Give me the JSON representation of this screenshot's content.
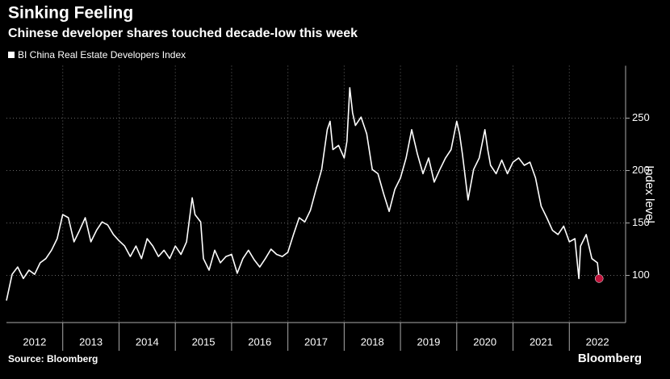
{
  "chart_data": {
    "type": "line",
    "title": "Sinking Feeling",
    "subtitle": "Chinese developer shares touched decade-low this week",
    "y_label": "Index level",
    "source": "Source: Bloomberg",
    "brand": "Bloomberg",
    "series": [
      {
        "name": "BI China Real Estate Developers Index",
        "color": "#ffffff",
        "x": [
          2012.0,
          2012.1,
          2012.2,
          2012.3,
          2012.4,
          2012.5,
          2012.6,
          2012.7,
          2012.8,
          2012.9,
          2013.0,
          2013.1,
          2013.2,
          2013.3,
          2013.4,
          2013.5,
          2013.6,
          2013.7,
          2013.8,
          2013.9,
          2014.0,
          2014.1,
          2014.2,
          2014.3,
          2014.4,
          2014.5,
          2014.6,
          2014.7,
          2014.8,
          2014.9,
          2015.0,
          2015.1,
          2015.2,
          2015.3,
          2015.35,
          2015.45,
          2015.5,
          2015.6,
          2015.7,
          2015.8,
          2015.9,
          2016.0,
          2016.1,
          2016.2,
          2016.3,
          2016.4,
          2016.5,
          2016.6,
          2016.7,
          2016.8,
          2016.9,
          2017.0,
          2017.1,
          2017.2,
          2017.3,
          2017.4,
          2017.5,
          2017.6,
          2017.7,
          2017.75,
          2017.8,
          2017.9,
          2018.0,
          2018.05,
          2018.1,
          2018.15,
          2018.2,
          2018.3,
          2018.4,
          2018.5,
          2018.6,
          2018.7,
          2018.8,
          2018.9,
          2019.0,
          2019.1,
          2019.2,
          2019.3,
          2019.4,
          2019.5,
          2019.6,
          2019.7,
          2019.8,
          2019.9,
          2020.0,
          2020.05,
          2020.1,
          2020.2,
          2020.3,
          2020.4,
          2020.5,
          2020.55,
          2020.6,
          2020.7,
          2020.8,
          2020.9,
          2021.0,
          2021.1,
          2021.2,
          2021.3,
          2021.4,
          2021.5,
          2021.6,
          2021.7,
          2021.8,
          2021.9,
          2022.0,
          2022.1,
          2022.17,
          2022.2,
          2022.3,
          2022.4,
          2022.5,
          2022.53
        ],
        "values": [
          76,
          101,
          108,
          97,
          105,
          101,
          112,
          116,
          124,
          135,
          158,
          155,
          132,
          143,
          155,
          132,
          143,
          151,
          148,
          139,
          133,
          128,
          118,
          128,
          116,
          135,
          128,
          118,
          124,
          116,
          128,
          120,
          132,
          174,
          158,
          151,
          116,
          105,
          124,
          112,
          118,
          120,
          102,
          116,
          124,
          115,
          108,
          116,
          125,
          120,
          118,
          122,
          139,
          155,
          151,
          162,
          182,
          201,
          239,
          247,
          220,
          224,
          212,
          228,
          279,
          255,
          243,
          251,
          235,
          201,
          197,
          178,
          161,
          182,
          193,
          212,
          239,
          216,
          197,
          212,
          189,
          201,
          212,
          220,
          247,
          235,
          216,
          172,
          201,
          212,
          239,
          220,
          205,
          197,
          210,
          197,
          208,
          212,
          205,
          208,
          193,
          166,
          155,
          143,
          139,
          147,
          132,
          135,
          97,
          128,
          139,
          116,
          112,
          97
        ]
      }
    ],
    "xlim": [
      2012,
      2023
    ],
    "ylim": [
      55,
      300
    ],
    "yticks": [
      100,
      150,
      200,
      250
    ],
    "xticks": [
      {
        "value": 2012.5,
        "label": "2012"
      },
      {
        "value": 2013.5,
        "label": "2013"
      },
      {
        "value": 2014.5,
        "label": "2014"
      },
      {
        "value": 2015.5,
        "label": "2015"
      },
      {
        "value": 2016.5,
        "label": "2016"
      },
      {
        "value": 2017.5,
        "label": "2017"
      },
      {
        "value": 2018.5,
        "label": "2018"
      },
      {
        "value": 2019.5,
        "label": "2019"
      },
      {
        "value": 2020.5,
        "label": "2020"
      },
      {
        "value": 2021.5,
        "label": "2021"
      },
      {
        "value": 2022.5,
        "label": "2022"
      }
    ],
    "xgrid": [
      2013,
      2014,
      2015,
      2016,
      2017,
      2018,
      2019,
      2020,
      2021,
      2022
    ],
    "grid": true,
    "end_marker_color": "#c0143c"
  }
}
